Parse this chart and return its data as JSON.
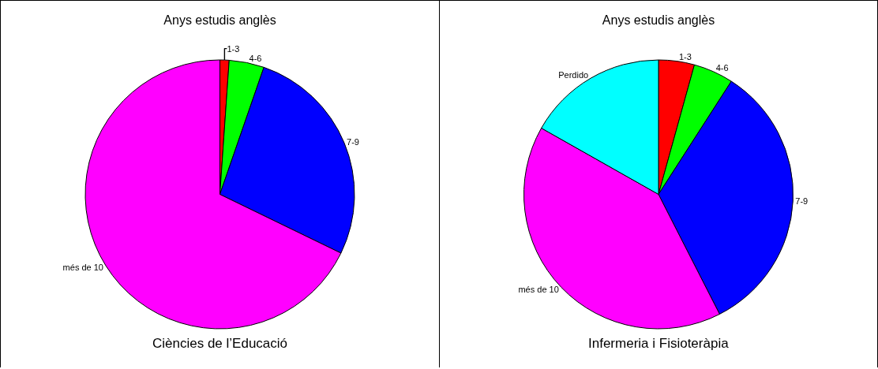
{
  "chart_data": [
    {
      "type": "pie",
      "title": "Anys estudis anglès",
      "categories": [
        "1-3",
        "4-6",
        "7-9",
        "més de 10"
      ],
      "values": [
        1.1,
        4.2,
        26.9,
        67.8
      ],
      "colors": [
        "#ff0000",
        "#00ff00",
        "#0000ff",
        "#ff00ff"
      ],
      "annotations": [
        "Ciències de l’Educació"
      ],
      "legend": false
    },
    {
      "type": "pie",
      "title": "Anys estudis anglès",
      "categories": [
        "1-3",
        "4-6",
        "7-9",
        "més de 10",
        "Perdido"
      ],
      "values": [
        4.3,
        4.8,
        33.4,
        40.7,
        16.8
      ],
      "colors": [
        "#ff0000",
        "#00ff00",
        "#0000ff",
        "#ff00ff",
        "#00ffff"
      ],
      "annotations": [
        "Infermeria i Fisioteràpia"
      ],
      "legend": false
    }
  ]
}
